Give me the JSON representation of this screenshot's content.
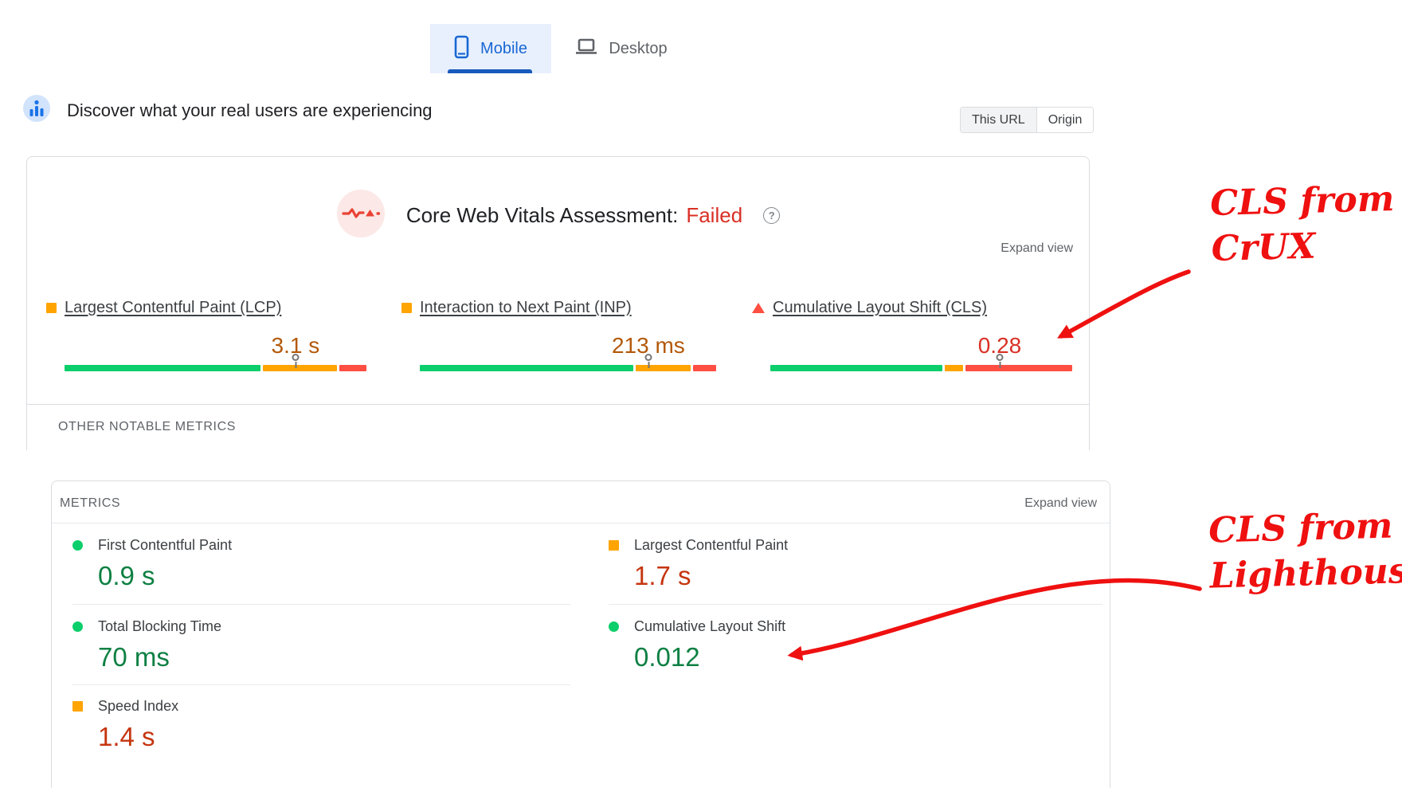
{
  "tabs": {
    "mobile": "Mobile",
    "desktop": "Desktop"
  },
  "discover": {
    "title": "Discover what your real users are experiencing",
    "toggle": {
      "this_url": "This URL",
      "origin": "Origin",
      "selected": "This URL"
    }
  },
  "icons": {
    "help": "?"
  },
  "colors": {
    "accent_blue": "#1a73e8",
    "tab_active_text": "#1967d2",
    "tab_active_bg": "#e8f0fe",
    "good_green_bar": "#0cce6b",
    "average_orange_bar": "#ffa400",
    "poor_red_bar": "#ff4e42",
    "failed_red": "#d93025",
    "annotation_red": "#ef1010"
  },
  "cwv_card": {
    "title": "Core Web Vitals Assessment:",
    "status": "Failed",
    "expand_label": "Expand view",
    "other_metrics_label": "OTHER NOTABLE METRICS",
    "metrics": [
      {
        "name": "Largest Contentful Paint (LCP)",
        "value": "3.1 s",
        "value_color": "#b3590a",
        "rating": "needs-improvement",
        "bullet": "square-orange",
        "bar": {
          "good_pct": 64,
          "average_pct": 24,
          "poor_pct": 9
        },
        "marker_pct": 75.3
      },
      {
        "name": "Interaction to Next Paint (INP)",
        "value": "213 ms",
        "value_color": "#b3590a",
        "rating": "needs-improvement",
        "bullet": "square-orange",
        "bar": {
          "good_pct": 71,
          "average_pct": 18.5,
          "poor_pct": 7.5
        },
        "marker_pct": 76.1
      },
      {
        "name": "Cumulative Layout Shift (CLS)",
        "value": "0.28",
        "value_color": "#d93025",
        "rating": "poor",
        "bullet": "triangle-red",
        "bar": {
          "good_pct": 56,
          "average_pct": 6,
          "poor_pct": 35
        },
        "marker_pct": 74.8
      }
    ]
  },
  "lab_card": {
    "header": "METRICS",
    "expand_label": "Expand view",
    "left": [
      {
        "label": "First Contentful Paint",
        "value": "0.9 s",
        "value_color": "#0d8043",
        "rating": "good",
        "bullet": "circle-green"
      },
      {
        "label": "Total Blocking Time",
        "value": "70 ms",
        "value_color": "#0d8043",
        "rating": "good",
        "bullet": "circle-green"
      },
      {
        "label": "Speed Index",
        "value": "1.4 s",
        "value_color": "#c5350f",
        "rating": "needs-improvement",
        "bullet": "square-orange"
      }
    ],
    "right": [
      {
        "label": "Largest Contentful Paint",
        "value": "1.7 s",
        "value_color": "#c5350f",
        "rating": "needs-improvement",
        "bullet": "square-orange"
      },
      {
        "label": "Cumulative Layout Shift",
        "value": "0.012",
        "value_color": "#0d8043",
        "rating": "good",
        "bullet": "circle-green"
      }
    ]
  },
  "annotations": {
    "crux": {
      "line1": "CLS from",
      "line2": "CrUX"
    },
    "lighthouse": {
      "line1": "CLS from",
      "line2": "Lighthouse"
    }
  }
}
